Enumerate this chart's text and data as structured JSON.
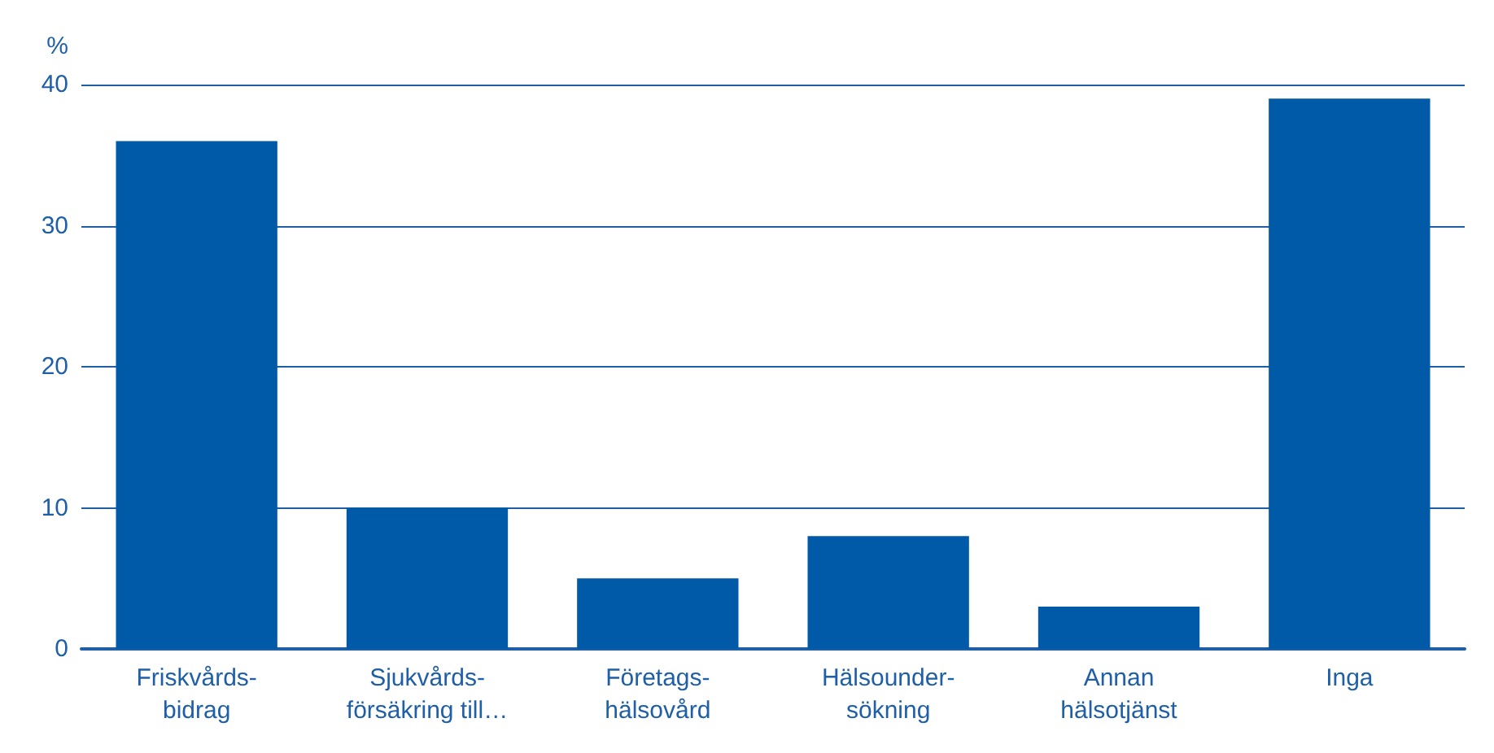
{
  "chart_data": {
    "type": "bar",
    "ylabel": "%",
    "categories": [
      "Friskvårds-\nbidrag",
      "Sjukvårds-\nförsäkring till…",
      "Företags-\nhälsovård",
      "Hälsounder-\nsökning",
      "Annan\nhälsotjänst",
      "Inga"
    ],
    "values": [
      36,
      10,
      5,
      8,
      3,
      39
    ],
    "color": "#005aa8",
    "ylim": [
      0,
      40
    ],
    "yticks": [
      0,
      10,
      20,
      30,
      40
    ],
    "grid": "y"
  }
}
